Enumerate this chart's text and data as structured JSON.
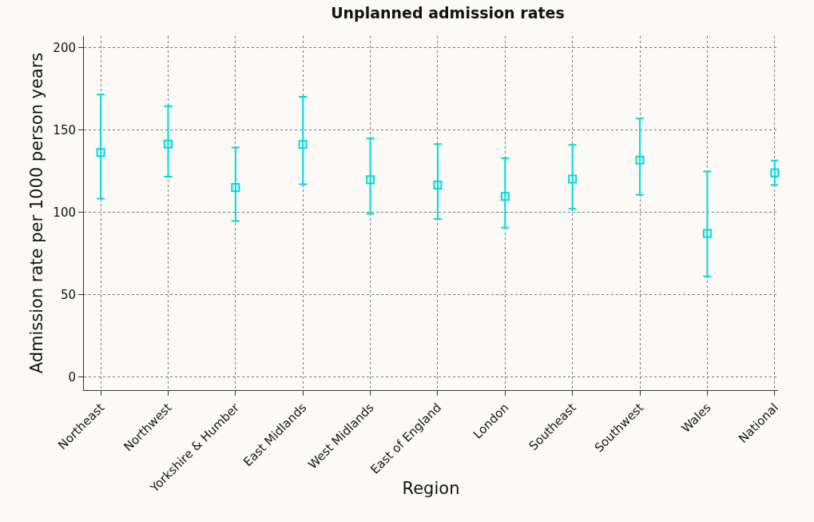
{
  "chart_data": {
    "type": "scatter",
    "title": "Unplanned admission rates",
    "xlabel": "Region",
    "ylabel": "Admission rate per 1000 person years",
    "categories": [
      "Northeast",
      "Northwest",
      "Yorkshire & Humber",
      "East Midlands",
      "West Midlands",
      "East of England",
      "London",
      "Southeast",
      "Southwest",
      "Wales",
      "National"
    ],
    "series": [
      {
        "color": "#00d8e0",
        "values": [
          136.3,
          141.4,
          115.0,
          141.1,
          119.8,
          116.5,
          109.6,
          120.1,
          131.6,
          87.1,
          123.9
        ],
        "errors": [
          [
            108.2,
            171.5
          ],
          [
            121.6,
            164.4
          ],
          [
            94.7,
            139.3
          ],
          [
            117.0,
            170.1
          ],
          [
            99.0,
            144.7
          ],
          [
            95.9,
            141.4
          ],
          [
            90.6,
            132.8
          ],
          [
            102.1,
            140.9
          ],
          [
            110.5,
            156.9
          ],
          [
            61.0,
            124.7
          ],
          [
            116.5,
            131.4
          ]
        ]
      }
    ],
    "ylim": [
      -8,
      207
    ],
    "yticks": [
      0,
      50,
      100,
      150,
      200
    ],
    "grid": true,
    "marker": "square"
  }
}
